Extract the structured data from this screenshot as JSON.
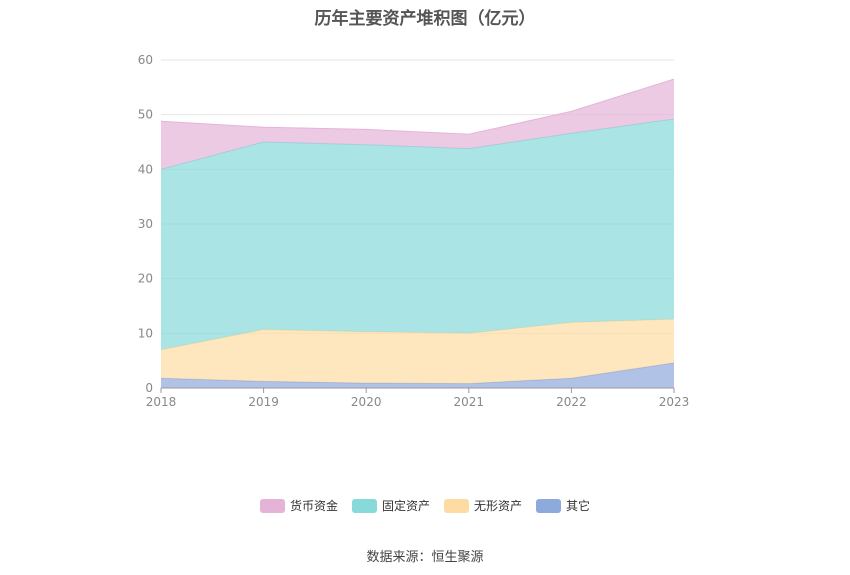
{
  "chart_data": {
    "type": "area",
    "stacked": true,
    "title": "历年主要资产堆积图（亿元）",
    "categories": [
      "2018",
      "2019",
      "2020",
      "2021",
      "2022",
      "2023"
    ],
    "ylim": [
      0,
      60
    ],
    "yticks": [
      0,
      10,
      20,
      30,
      40,
      50,
      60
    ],
    "grid": true,
    "legend_position": "bottom",
    "series": [
      {
        "name": "其它",
        "values": [
          1.8,
          1.2,
          0.9,
          0.8,
          1.8,
          4.6
        ],
        "color": "#8eaadd"
      },
      {
        "name": "无形资产",
        "values": [
          5.2,
          9.5,
          9.4,
          9.2,
          10.2,
          8.0
        ],
        "color": "#fddba3"
      },
      {
        "name": "固定资产",
        "values": [
          33.0,
          34.3,
          34.2,
          33.8,
          34.6,
          36.6
        ],
        "color": "#87d9da"
      },
      {
        "name": "货币资金",
        "values": [
          8.8,
          2.7,
          2.8,
          2.6,
          4.0,
          7.3
        ],
        "color": "#e6b3d8"
      }
    ],
    "legend_order": [
      "货币资金",
      "固定资产",
      "无形资产",
      "其它"
    ]
  },
  "source_text": "数据来源：恒生聚源"
}
